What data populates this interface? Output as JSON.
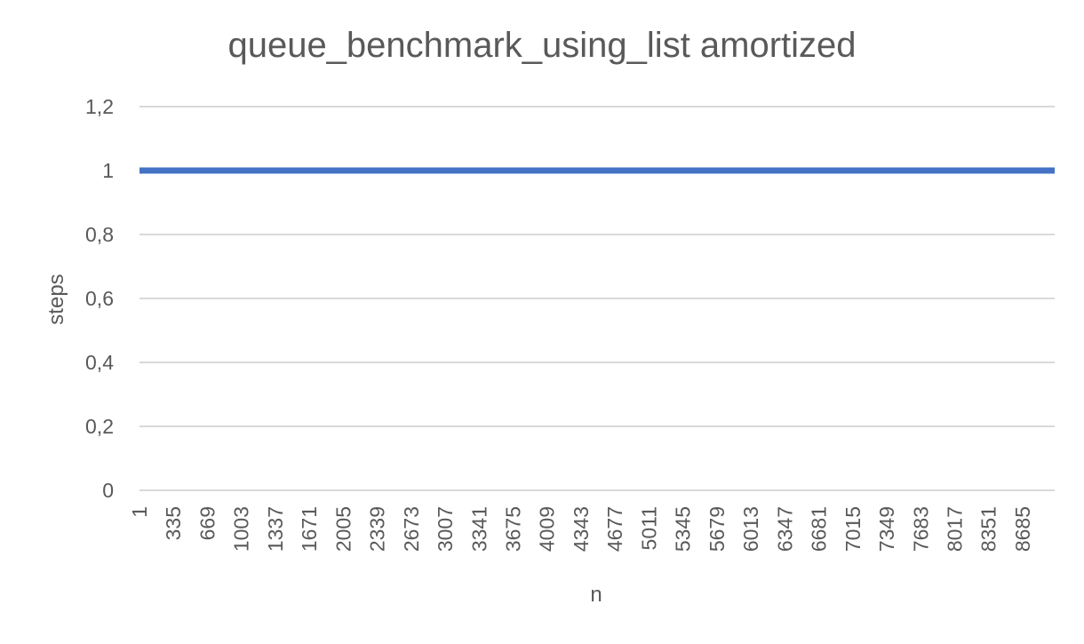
{
  "chart_data": {
    "type": "line",
    "title": "queue_benchmark_using_list amortized",
    "xlabel": "n",
    "ylabel": "steps",
    "x_tick_labels": [
      "1",
      "335",
      "669",
      "1003",
      "1337",
      "1671",
      "2005",
      "2339",
      "2673",
      "3007",
      "3341",
      "3675",
      "4009",
      "4343",
      "4677",
      "5011",
      "5345",
      "5679",
      "6013",
      "6347",
      "6681",
      "7015",
      "7349",
      "7683",
      "8017",
      "8351",
      "8685"
    ],
    "x_range": [
      1,
      9000
    ],
    "x_tick_step": 334,
    "y_tick_labels": [
      "0",
      "0,2",
      "0,4",
      "0,6",
      "0,8",
      "1",
      "1,2"
    ],
    "y_tick_values": [
      0,
      0.2,
      0.4,
      0.6,
      0.8,
      1,
      1.2
    ],
    "ylim": [
      0,
      1.2
    ],
    "grid": "horizontal",
    "legend": "none",
    "series": [
      {
        "color": "#4472c4",
        "x": [
          1,
          9000
        ],
        "y": [
          1,
          1
        ]
      }
    ]
  }
}
